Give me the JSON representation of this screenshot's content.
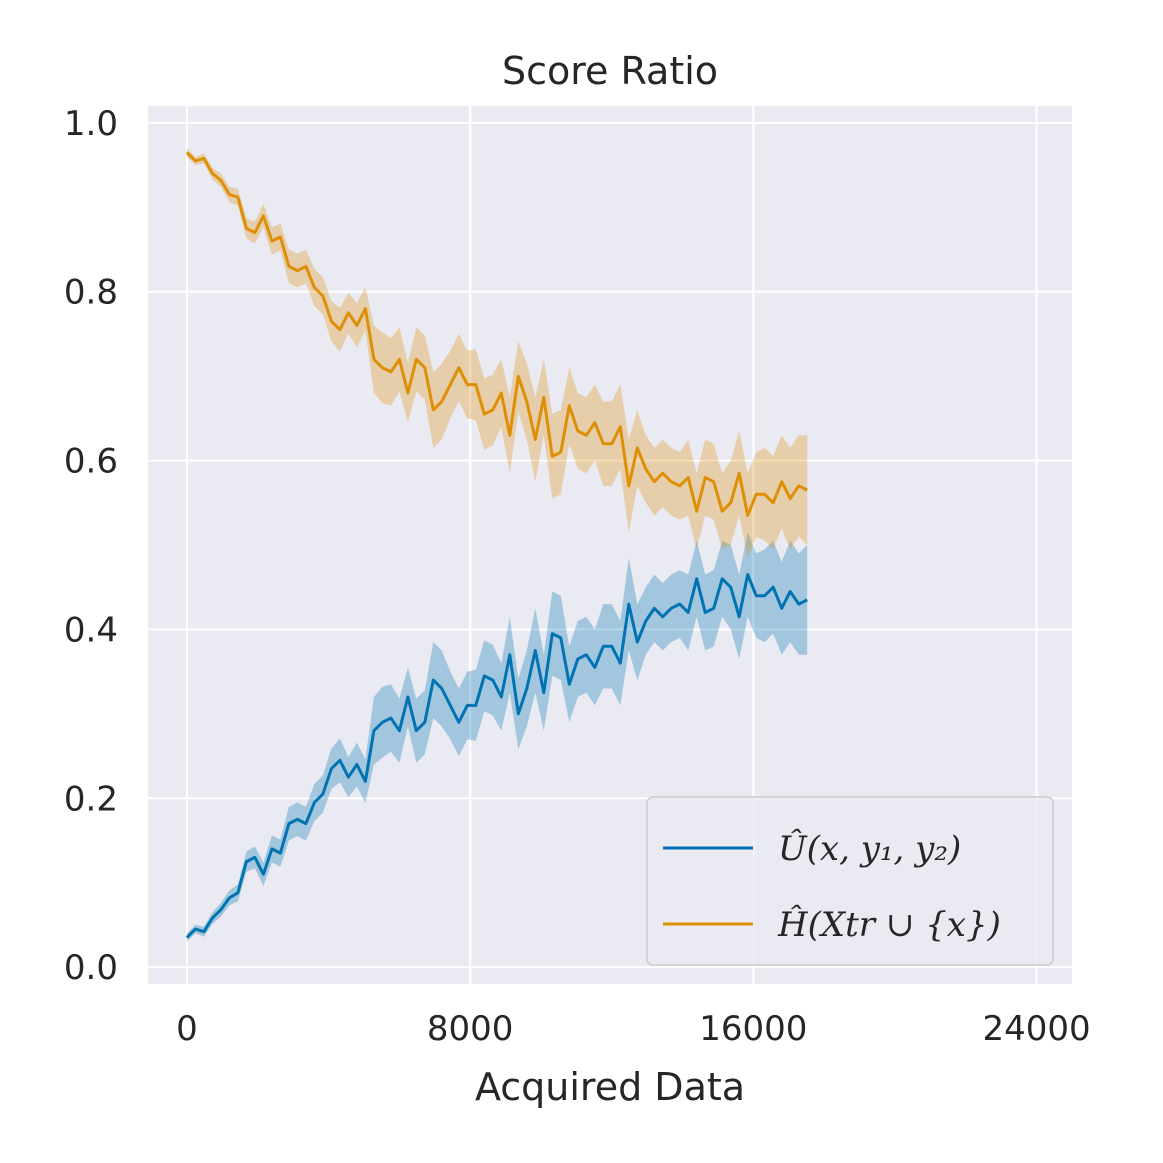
{
  "chart_data": {
    "type": "line",
    "title": "Score Ratio",
    "xlabel": "Acquired Data",
    "ylabel": "",
    "xlim": [
      -1100,
      25000
    ],
    "ylim": [
      -0.02,
      1.02
    ],
    "xticks": [
      0,
      8000,
      16000,
      24000
    ],
    "yticks": [
      0.0,
      0.2,
      0.4,
      0.6,
      0.8,
      1.0
    ],
    "xtick_labels": [
      "0",
      "8000",
      "16000",
      "24000"
    ],
    "ytick_labels": [
      "0.0",
      "0.2",
      "0.4",
      "0.6",
      "0.8",
      "1.0"
    ],
    "grid": true,
    "legend_position": "lower-right",
    "x_step": 240,
    "series": [
      {
        "name": "Û(x, y₁, y₂)",
        "color": "#0173b2",
        "values": [
          0.035,
          0.045,
          0.042,
          0.058,
          0.068,
          0.082,
          0.088,
          0.125,
          0.13,
          0.11,
          0.14,
          0.135,
          0.17,
          0.175,
          0.17,
          0.195,
          0.205,
          0.235,
          0.245,
          0.225,
          0.24,
          0.22,
          0.28,
          0.29,
          0.295,
          0.28,
          0.32,
          0.28,
          0.29,
          0.34,
          0.33,
          0.31,
          0.29,
          0.31,
          0.31,
          0.345,
          0.34,
          0.32,
          0.37,
          0.3,
          0.33,
          0.375,
          0.325,
          0.395,
          0.39,
          0.335,
          0.365,
          0.37,
          0.355,
          0.38,
          0.38,
          0.36,
          0.43,
          0.385,
          0.41,
          0.425,
          0.415,
          0.425,
          0.43,
          0.42,
          0.46,
          0.42,
          0.425,
          0.46,
          0.45,
          0.415,
          0.465,
          0.44,
          0.44,
          0.45,
          0.425,
          0.445,
          0.43,
          0.435
        ],
        "band": [
          0.005,
          0.005,
          0.006,
          0.007,
          0.008,
          0.009,
          0.01,
          0.012,
          0.013,
          0.014,
          0.016,
          0.016,
          0.02,
          0.02,
          0.02,
          0.022,
          0.022,
          0.024,
          0.026,
          0.024,
          0.026,
          0.026,
          0.04,
          0.042,
          0.04,
          0.038,
          0.035,
          0.038,
          0.038,
          0.045,
          0.045,
          0.04,
          0.04,
          0.04,
          0.042,
          0.042,
          0.042,
          0.04,
          0.045,
          0.042,
          0.045,
          0.05,
          0.045,
          0.05,
          0.05,
          0.045,
          0.045,
          0.045,
          0.045,
          0.05,
          0.05,
          0.05,
          0.055,
          0.045,
          0.04,
          0.04,
          0.04,
          0.04,
          0.04,
          0.045,
          0.045,
          0.045,
          0.045,
          0.045,
          0.05,
          0.05,
          0.05,
          0.05,
          0.055,
          0.055,
          0.055,
          0.06,
          0.06,
          0.065
        ]
      },
      {
        "name": "Ĥ(Xtr ∪ {x})",
        "color": "#de8f05",
        "values": [
          0.965,
          0.955,
          0.958,
          0.94,
          0.932,
          0.915,
          0.912,
          0.875,
          0.87,
          0.89,
          0.86,
          0.865,
          0.83,
          0.825,
          0.83,
          0.805,
          0.795,
          0.765,
          0.755,
          0.775,
          0.76,
          0.78,
          0.72,
          0.71,
          0.705,
          0.72,
          0.68,
          0.72,
          0.71,
          0.66,
          0.67,
          0.69,
          0.71,
          0.69,
          0.69,
          0.655,
          0.66,
          0.68,
          0.63,
          0.7,
          0.67,
          0.625,
          0.675,
          0.605,
          0.61,
          0.665,
          0.635,
          0.63,
          0.645,
          0.62,
          0.62,
          0.64,
          0.57,
          0.615,
          0.59,
          0.575,
          0.585,
          0.575,
          0.57,
          0.58,
          0.54,
          0.58,
          0.575,
          0.54,
          0.55,
          0.585,
          0.535,
          0.56,
          0.56,
          0.55,
          0.575,
          0.555,
          0.57,
          0.565
        ],
        "band": [
          0.005,
          0.005,
          0.006,
          0.007,
          0.008,
          0.009,
          0.01,
          0.012,
          0.013,
          0.014,
          0.016,
          0.016,
          0.02,
          0.02,
          0.02,
          0.022,
          0.022,
          0.024,
          0.026,
          0.024,
          0.026,
          0.026,
          0.04,
          0.042,
          0.04,
          0.038,
          0.035,
          0.038,
          0.038,
          0.045,
          0.045,
          0.04,
          0.04,
          0.04,
          0.042,
          0.042,
          0.042,
          0.04,
          0.045,
          0.042,
          0.045,
          0.05,
          0.045,
          0.05,
          0.05,
          0.045,
          0.045,
          0.045,
          0.045,
          0.05,
          0.05,
          0.05,
          0.055,
          0.045,
          0.04,
          0.04,
          0.04,
          0.04,
          0.04,
          0.045,
          0.045,
          0.045,
          0.045,
          0.045,
          0.05,
          0.05,
          0.05,
          0.05,
          0.055,
          0.055,
          0.055,
          0.06,
          0.06,
          0.065
        ]
      }
    ]
  }
}
